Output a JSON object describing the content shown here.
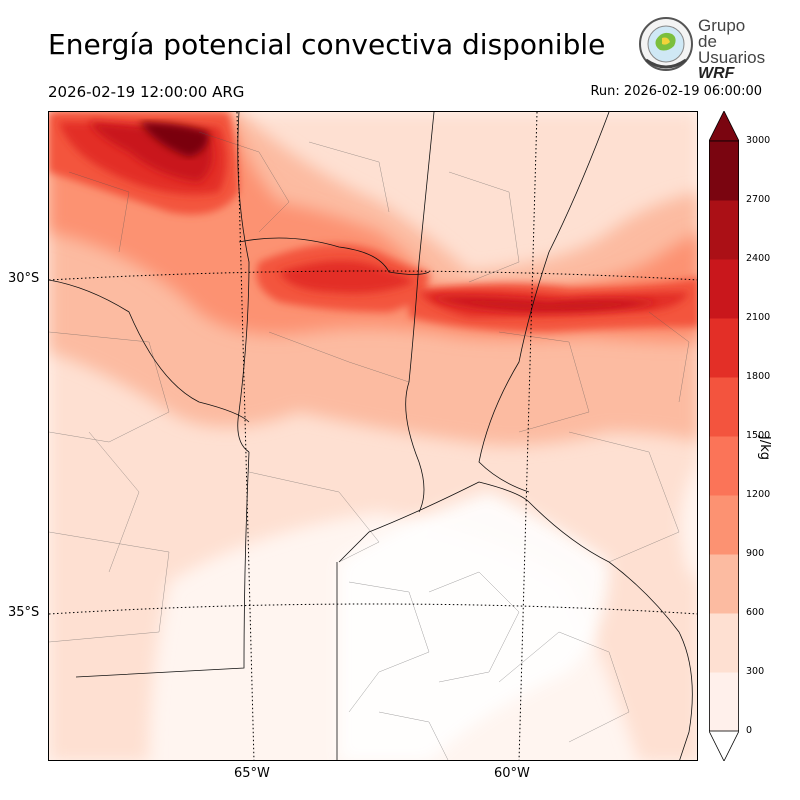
{
  "header": {
    "title": "Energía potencial convectiva disponible",
    "valid_time": "2026-02-19 12:00:00 ARG",
    "run_time": "Run: 2026-02-19 06:00:00"
  },
  "logo": {
    "line1": "Grupo de",
    "line2": "Usuarios",
    "line3": "WRF"
  },
  "map": {
    "lat_labels": [
      "30°S",
      "35°S"
    ],
    "lon_labels": [
      "65°W",
      "60°W"
    ]
  },
  "colorbar": {
    "unit": "J/kg",
    "ticks": [
      "0",
      "300",
      "600",
      "900",
      "1200",
      "1500",
      "1800",
      "2100",
      "2400",
      "2700",
      "3000"
    ],
    "colors": [
      "#fff0eb",
      "#fee0d2",
      "#fcbba1",
      "#fc9272",
      "#fb7458",
      "#f3543e",
      "#e32f27",
      "#c9171c",
      "#ab1016",
      "#7a0510"
    ]
  }
}
